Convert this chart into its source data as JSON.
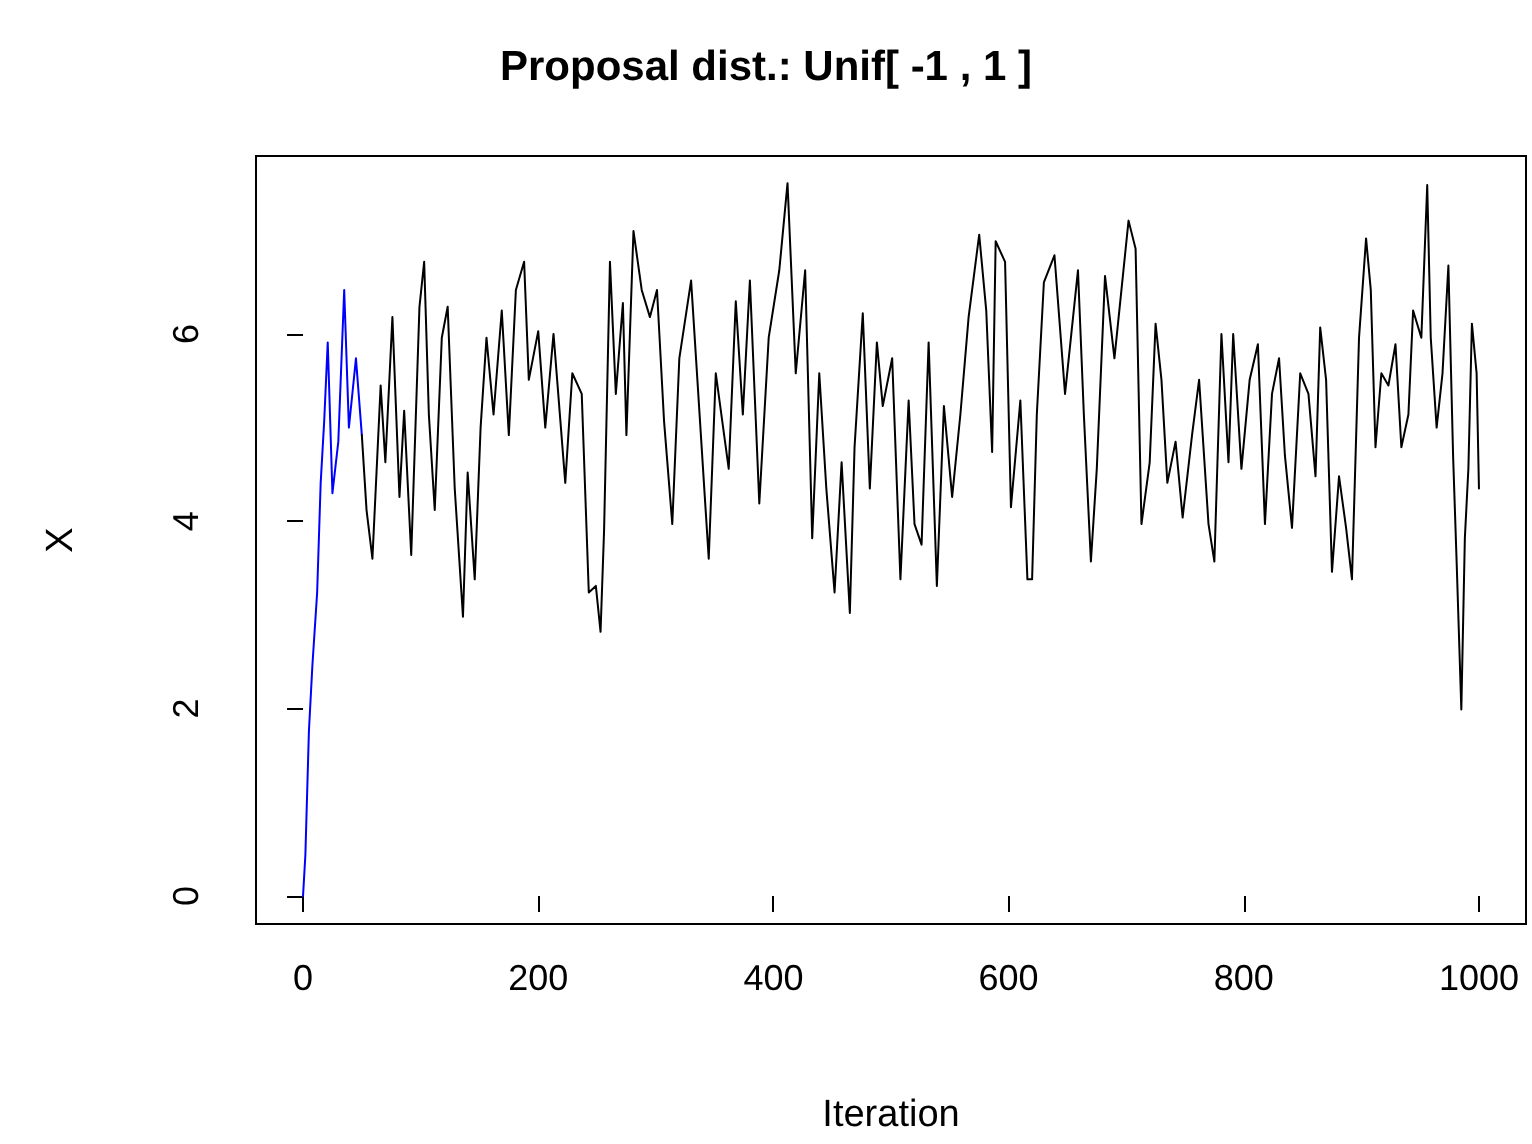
{
  "chart_data": {
    "type": "line",
    "title": "Proposal dist.: Unif[ -1 , 1 ]",
    "xlabel": "Iteration",
    "ylabel": "X",
    "xlim": [
      -40,
      1040
    ],
    "ylim": [
      -0.3,
      7.9
    ],
    "xticks": [
      0,
      200,
      400,
      600,
      800,
      1000
    ],
    "yticks": [
      0,
      2,
      4,
      6
    ],
    "grid": false,
    "marker": "none",
    "line_style": "solid",
    "series": [
      {
        "color": "#0000ff",
        "x": [
          0,
          2,
          5,
          8,
          12,
          15,
          18,
          21,
          25,
          30,
          35,
          39,
          45,
          50
        ],
        "values": [
          0,
          0.44,
          1.76,
          2.47,
          3.24,
          4.41,
          5.07,
          5.91,
          4.3,
          4.85,
          6.47,
          5.0,
          5.74,
          4.92
        ]
      },
      {
        "color": "#000000",
        "x": [
          50,
          54,
          59,
          66,
          70,
          76,
          82,
          86,
          92,
          99,
          103,
          107,
          112,
          118,
          123,
          129,
          136,
          140,
          146,
          151,
          156,
          162,
          169,
          175,
          181,
          188,
          192,
          200,
          206,
          213,
          223,
          229,
          237,
          243,
          249,
          253,
          256,
          261,
          266,
          272,
          275,
          281,
          288,
          295,
          301,
          307,
          314,
          320,
          330,
          345,
          351,
          362,
          368,
          374,
          380,
          388,
          396,
          405,
          412,
          419,
          427,
          433,
          439,
          445,
          452,
          458,
          465,
          469,
          476,
          482,
          488,
          493,
          501,
          508,
          515,
          520,
          526,
          532,
          539,
          545,
          552,
          559,
          566,
          575,
          581,
          586,
          589,
          597,
          602,
          610,
          616,
          620,
          624,
          630,
          639,
          648,
          653,
          659,
          664,
          670,
          675,
          682,
          690,
          702,
          708,
          713,
          720,
          725,
          730,
          735,
          742,
          748,
          756,
          762,
          770,
          775,
          781,
          787,
          791,
          798,
          805,
          812,
          818,
          824,
          830,
          835,
          841,
          848,
          855,
          861,
          865,
          870,
          875,
          881,
          887,
          892,
          898,
          904,
          908,
          912,
          917,
          923,
          929,
          934,
          940,
          944,
          951,
          956,
          959,
          964,
          969,
          974,
          978,
          981,
          985,
          988,
          991,
          994,
          998,
          1000
        ],
        "values": [
          4.92,
          4.12,
          3.6,
          5.45,
          4.63,
          6.18,
          4.26,
          5.18,
          3.64,
          6.29,
          6.77,
          5.14,
          4.12,
          5.96,
          6.29,
          4.35,
          2.98,
          4.52,
          3.38,
          5.0,
          5.96,
          5.14,
          6.25,
          4.92,
          6.47,
          6.77,
          5.51,
          6.03,
          5.0,
          6.0,
          4.41,
          5.58,
          5.36,
          3.24,
          3.31,
          2.82,
          3.9,
          6.77,
          5.36,
          6.33,
          4.92,
          7.1,
          6.47,
          6.18,
          6.47,
          5.07,
          3.97,
          5.74,
          6.57,
          3.6,
          5.58,
          4.56,
          6.35,
          5.14,
          6.57,
          4.19,
          5.96,
          6.68,
          7.61,
          5.58,
          6.68,
          3.82,
          5.58,
          4.35,
          3.24,
          4.63,
          3.02,
          4.79,
          6.22,
          4.35,
          5.91,
          5.23,
          5.74,
          3.38,
          5.29,
          3.97,
          3.75,
          5.91,
          3.31,
          5.23,
          4.26,
          5.14,
          6.18,
          7.06,
          6.25,
          4.74,
          6.99,
          6.77,
          4.15,
          5.29,
          3.38,
          3.38,
          5.14,
          6.55,
          6.84,
          5.36,
          5.96,
          6.68,
          5.14,
          3.57,
          4.56,
          6.62,
          5.74,
          7.21,
          6.91,
          3.97,
          4.63,
          6.11,
          5.51,
          4.41,
          4.85,
          4.04,
          4.92,
          5.51,
          3.97,
          3.57,
          6.0,
          4.63,
          6.0,
          4.56,
          5.51,
          5.89,
          3.97,
          5.36,
          5.74,
          4.7,
          3.93,
          5.58,
          5.36,
          4.48,
          6.07,
          5.51,
          3.46,
          4.48,
          3.93,
          3.38,
          5.96,
          7.02,
          6.47,
          4.79,
          5.58,
          5.45,
          5.89,
          4.79,
          5.14,
          6.25,
          5.96,
          7.59,
          5.96,
          5.0,
          5.58,
          6.73,
          4.7,
          3.57,
          1.99,
          3.82,
          4.56,
          6.11,
          5.58,
          4.35
        ]
      }
    ]
  }
}
